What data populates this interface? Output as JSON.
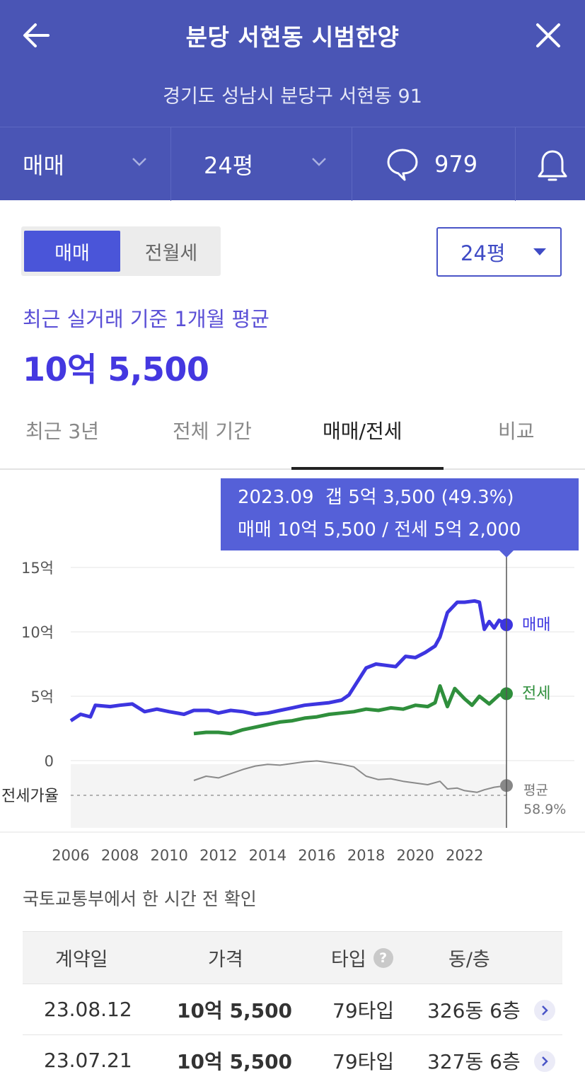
{
  "header": {
    "title": "분당 서현동 시범한양",
    "address": "경기도 성남시 분당구 서현동 91",
    "deal_type": "매매",
    "size": "24평",
    "comment_count": "979"
  },
  "toggle": {
    "on": "매매",
    "off": "전월세"
  },
  "size_select": "24평",
  "summary": {
    "label": "최근 실거래 기준 1개월 평균",
    "price": "10억 5,500"
  },
  "tabs": [
    "최근 3년",
    "전체 기간",
    "매매/전세",
    "비교"
  ],
  "tooltip": {
    "line1": "2023.09  갭 5억 3,500 (49.3%)",
    "line2": "매매 10억 5,500 / 전세 5억 2,000"
  },
  "chart_data": {
    "type": "line",
    "x_ticks": [
      "2006",
      "2008",
      "2010",
      "2012",
      "2014",
      "2016",
      "2018",
      "2020",
      "2022"
    ],
    "y_ticks": [
      "15억",
      "10억",
      "5억",
      "0"
    ],
    "ylim": [
      0,
      15
    ],
    "series": [
      {
        "name": "매매",
        "color": "#3d35e0",
        "points": [
          [
            2006.0,
            3.1
          ],
          [
            2006.4,
            3.6
          ],
          [
            2006.8,
            3.4
          ],
          [
            2007.0,
            4.3
          ],
          [
            2007.6,
            4.2
          ],
          [
            2008.0,
            4.3
          ],
          [
            2008.5,
            4.4
          ],
          [
            2009.0,
            3.8
          ],
          [
            2009.5,
            4.0
          ],
          [
            2010.0,
            3.8
          ],
          [
            2010.6,
            3.6
          ],
          [
            2011.0,
            3.9
          ],
          [
            2011.6,
            3.9
          ],
          [
            2012.0,
            3.7
          ],
          [
            2012.5,
            3.9
          ],
          [
            2013.0,
            3.8
          ],
          [
            2013.5,
            3.6
          ],
          [
            2014.0,
            3.7
          ],
          [
            2014.5,
            3.9
          ],
          [
            2015.0,
            4.1
          ],
          [
            2015.5,
            4.3
          ],
          [
            2016.0,
            4.4
          ],
          [
            2016.5,
            4.5
          ],
          [
            2017.0,
            4.7
          ],
          [
            2017.3,
            5.1
          ],
          [
            2017.6,
            6.0
          ],
          [
            2018.0,
            7.2
          ],
          [
            2018.4,
            7.5
          ],
          [
            2018.8,
            7.4
          ],
          [
            2019.2,
            7.3
          ],
          [
            2019.6,
            8.1
          ],
          [
            2020.0,
            8.0
          ],
          [
            2020.4,
            8.4
          ],
          [
            2020.8,
            8.9
          ],
          [
            2021.0,
            9.6
          ],
          [
            2021.3,
            11.5
          ],
          [
            2021.7,
            12.3
          ],
          [
            2022.0,
            12.3
          ],
          [
            2022.4,
            12.4
          ],
          [
            2022.6,
            12.3
          ],
          [
            2022.8,
            10.2
          ],
          [
            2023.0,
            10.8
          ],
          [
            2023.2,
            10.3
          ],
          [
            2023.4,
            10.9
          ],
          [
            2023.7,
            10.55
          ]
        ]
      },
      {
        "name": "전세",
        "color": "#2f8f3c",
        "points": [
          [
            2011.0,
            2.1
          ],
          [
            2011.5,
            2.2
          ],
          [
            2012.0,
            2.2
          ],
          [
            2012.5,
            2.1
          ],
          [
            2013.0,
            2.4
          ],
          [
            2013.5,
            2.6
          ],
          [
            2014.0,
            2.8
          ],
          [
            2014.5,
            3.0
          ],
          [
            2015.0,
            3.1
          ],
          [
            2015.5,
            3.3
          ],
          [
            2016.0,
            3.4
          ],
          [
            2016.5,
            3.6
          ],
          [
            2017.0,
            3.7
          ],
          [
            2017.5,
            3.8
          ],
          [
            2018.0,
            4.0
          ],
          [
            2018.5,
            3.9
          ],
          [
            2019.0,
            4.1
          ],
          [
            2019.5,
            4.0
          ],
          [
            2020.0,
            4.3
          ],
          [
            2020.5,
            4.2
          ],
          [
            2020.8,
            4.5
          ],
          [
            2021.0,
            5.8
          ],
          [
            2021.3,
            4.2
          ],
          [
            2021.6,
            5.6
          ],
          [
            2022.0,
            4.8
          ],
          [
            2022.3,
            4.3
          ],
          [
            2022.6,
            5.0
          ],
          [
            2023.0,
            4.4
          ],
          [
            2023.4,
            5.1
          ],
          [
            2023.7,
            5.2
          ]
        ]
      }
    ],
    "jeonse_ratio": {
      "label": "전세가율",
      "avg_label": "평균",
      "avg_value": "58.9%",
      "points": [
        [
          2011.0,
          0.55
        ],
        [
          2011.5,
          0.6
        ],
        [
          2012.0,
          0.58
        ],
        [
          2012.5,
          0.63
        ],
        [
          2013.0,
          0.68
        ],
        [
          2013.5,
          0.72
        ],
        [
          2014.0,
          0.74
        ],
        [
          2014.5,
          0.73
        ],
        [
          2015.0,
          0.75
        ],
        [
          2015.5,
          0.77
        ],
        [
          2016.0,
          0.78
        ],
        [
          2016.5,
          0.76
        ],
        [
          2017.0,
          0.74
        ],
        [
          2017.5,
          0.71
        ],
        [
          2018.0,
          0.6
        ],
        [
          2018.5,
          0.56
        ],
        [
          2019.0,
          0.57
        ],
        [
          2019.5,
          0.54
        ],
        [
          2020.0,
          0.52
        ],
        [
          2020.5,
          0.5
        ],
        [
          2021.0,
          0.54
        ],
        [
          2021.3,
          0.45
        ],
        [
          2021.7,
          0.46
        ],
        [
          2022.0,
          0.43
        ],
        [
          2022.5,
          0.41
        ],
        [
          2022.8,
          0.44
        ],
        [
          2023.2,
          0.47
        ],
        [
          2023.7,
          0.49
        ]
      ]
    },
    "series_labels": [
      "매매",
      "전세"
    ]
  },
  "source_note": "국토교통부에서 한 시간 전 확인",
  "table": {
    "headers": [
      "계약일",
      "가격",
      "타입",
      "동/층"
    ],
    "help_icon": "?",
    "rows": [
      [
        "23.08.12",
        "10억 5,500",
        "79타입",
        "326동 6층"
      ],
      [
        "23.07.21",
        "10억 5,500",
        "79타입",
        "327동 6층"
      ]
    ]
  }
}
